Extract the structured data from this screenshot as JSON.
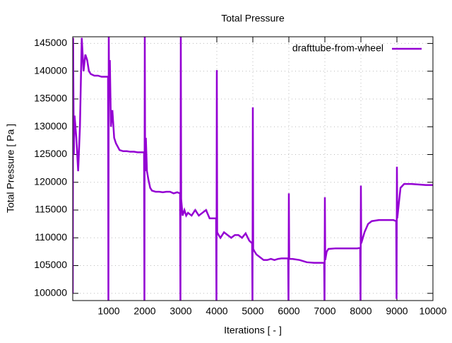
{
  "chart_data": {
    "type": "line",
    "title": "Total Pressure",
    "x_label": "Iterations [ - ]",
    "y_label": "Total Pressure [ Pa ]",
    "xlim": [
      0,
      10000
    ],
    "ylim": [
      98700,
      146200
    ],
    "xticks": [
      1000,
      2000,
      3000,
      4000,
      5000,
      6000,
      7000,
      8000,
      9000,
      10000
    ],
    "yticks": [
      100000,
      105000,
      110000,
      115000,
      120000,
      125000,
      130000,
      135000,
      140000,
      145000
    ],
    "grid": true,
    "legend": "top-right",
    "x": [
      0,
      10,
      30,
      50,
      100,
      150,
      200,
      250,
      300,
      350,
      400,
      450,
      500,
      600,
      700,
      800,
      900,
      980,
      990,
      1000,
      1010,
      1030,
      1060,
      1100,
      1150,
      1200,
      1300,
      1400,
      1500,
      1600,
      1700,
      1800,
      1900,
      1980,
      1990,
      2000,
      2010,
      2030,
      2060,
      2100,
      2150,
      2200,
      2300,
      2400,
      2500,
      2600,
      2700,
      2800,
      2900,
      2980,
      2990,
      3000,
      3010,
      3050,
      3100,
      3150,
      3200,
      3300,
      3400,
      3500,
      3600,
      3700,
      3800,
      3900,
      3980,
      3990,
      4000,
      4010,
      4050,
      4100,
      4200,
      4300,
      4400,
      4500,
      4600,
      4700,
      4800,
      4900,
      4980,
      4990,
      5000,
      5010,
      5050,
      5100,
      5200,
      5300,
      5400,
      5500,
      5600,
      5700,
      5800,
      5900,
      5980,
      5990,
      6000,
      6010,
      6100,
      6300,
      6500,
      6700,
      6900,
      6980,
      6990,
      7000,
      7010,
      7050,
      7100,
      7300,
      7500,
      7700,
      7900,
      7980,
      7990,
      8000,
      8010,
      8100,
      8200,
      8300,
      8500,
      8700,
      8900,
      8980,
      8990,
      9000,
      9010,
      9050,
      9100,
      9200,
      9400,
      9600,
      9800,
      10000
    ],
    "series": [
      {
        "name": "drafttube-from-wheel",
        "color": "#9400d3",
        "values": [
          100000,
          146000,
          125000,
          132000,
          128000,
          122000,
          130000,
          146000,
          140000,
          143000,
          142000,
          140000,
          139500,
          139200,
          139200,
          139000,
          139000,
          139000,
          98000,
          147000,
          136000,
          142000,
          130000,
          133000,
          128000,
          127000,
          125800,
          125600,
          125600,
          125500,
          125500,
          125400,
          125400,
          125400,
          98000,
          147000,
          122000,
          128000,
          122000,
          120500,
          119000,
          118500,
          118300,
          118300,
          118200,
          118300,
          118300,
          118000,
          118200,
          118000,
          98000,
          147000,
          117000,
          114000,
          115000,
          114000,
          114500,
          114000,
          115000,
          114000,
          114500,
          115000,
          113500,
          113500,
          113500,
          98000,
          140200,
          111000,
          110500,
          110000,
          111000,
          110500,
          110000,
          110500,
          110500,
          110000,
          110800,
          109500,
          109000,
          98000,
          133500,
          108000,
          107500,
          107000,
          106500,
          106000,
          106000,
          106200,
          106000,
          106200,
          106300,
          106300,
          106300,
          98000,
          118000,
          106200,
          106200,
          106000,
          105600,
          105500,
          105500,
          105500,
          98000,
          117300,
          106000,
          107500,
          108000,
          108100,
          108100,
          108100,
          108100,
          108200,
          98000,
          119400,
          109000,
          111000,
          112500,
          113000,
          113200,
          113200,
          113200,
          113000,
          99000,
          122800,
          113500,
          116000,
          119000,
          119700,
          119700,
          119600,
          119500,
          119500
        ]
      }
    ]
  }
}
